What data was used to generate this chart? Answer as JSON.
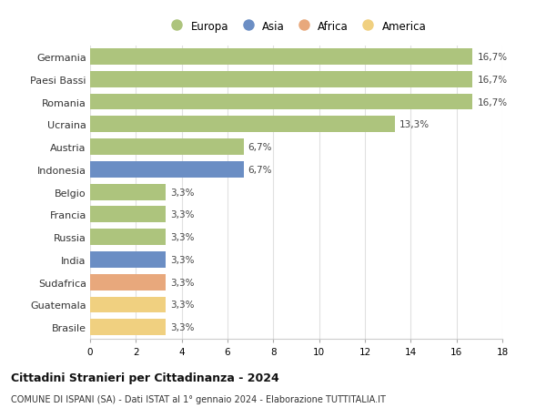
{
  "categories": [
    "Germania",
    "Paesi Bassi",
    "Romania",
    "Ucraina",
    "Austria",
    "Indonesia",
    "Belgio",
    "Francia",
    "Russia",
    "India",
    "Sudafrica",
    "Guatemala",
    "Brasile"
  ],
  "values": [
    16.7,
    16.7,
    16.7,
    13.3,
    6.7,
    6.7,
    3.3,
    3.3,
    3.3,
    3.3,
    3.3,
    3.3,
    3.3
  ],
  "labels": [
    "16,7%",
    "16,7%",
    "16,7%",
    "13,3%",
    "6,7%",
    "6,7%",
    "3,3%",
    "3,3%",
    "3,3%",
    "3,3%",
    "3,3%",
    "3,3%",
    "3,3%"
  ],
  "colors": [
    "#adc47d",
    "#adc47d",
    "#adc47d",
    "#adc47d",
    "#adc47d",
    "#6b8ec4",
    "#adc47d",
    "#adc47d",
    "#adc47d",
    "#6b8ec4",
    "#e8a87c",
    "#f0d080",
    "#f0d080"
  ],
  "legend_labels": [
    "Europa",
    "Asia",
    "Africa",
    "America"
  ],
  "legend_colors": [
    "#adc47d",
    "#6b8ec4",
    "#e8a87c",
    "#f0d080"
  ],
  "title": "Cittadini Stranieri per Cittadinanza - 2024",
  "subtitle": "COMUNE DI ISPANI (SA) - Dati ISTAT al 1° gennaio 2024 - Elaborazione TUTTITALIA.IT",
  "xlim": [
    0,
    18
  ],
  "xticks": [
    0,
    2,
    4,
    6,
    8,
    10,
    12,
    14,
    16,
    18
  ],
  "bg_color": "#ffffff",
  "grid_color": "#e0e0e0",
  "bar_height": 0.72
}
